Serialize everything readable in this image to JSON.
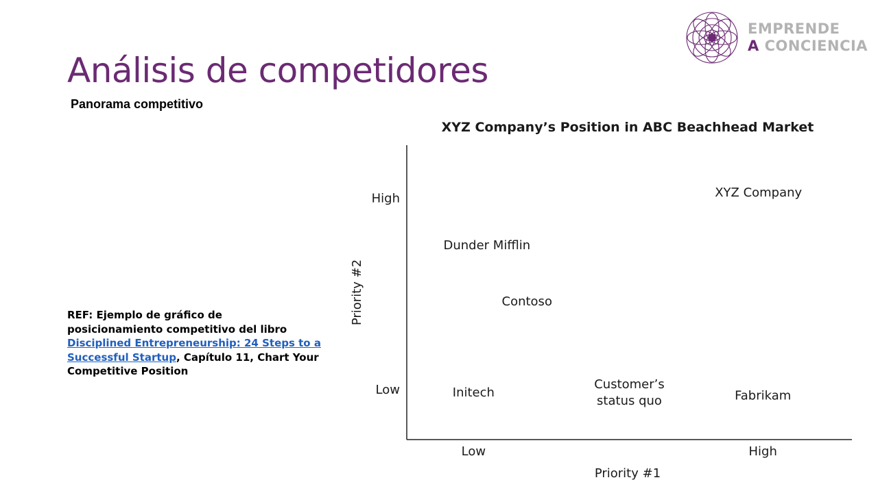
{
  "slide": {
    "title": "Análisis de competidores",
    "subtitle": "Panorama competitivo"
  },
  "logo": {
    "line1": "EMPRENDE",
    "line2_a": "A",
    "line2_b": "CONCIENCIA",
    "primary_color": "#6b2a73",
    "secondary_color": "#b3b3b3",
    "icon": "flower-mandala-icon"
  },
  "reference": {
    "prefix": "REF: Ejemplo de gráfico de posicionamiento competitivo del libro ",
    "link_text": "Disciplined Entrepreneurship: 24 Steps to a Successful Startup",
    "suffix": ", Capítulo 11, Chart Your Competitive Position"
  },
  "chart_data": {
    "type": "scatter",
    "title": "XYZ Company’s Position in ABC Beachhead Market",
    "xlabel": "Priority #1",
    "ylabel": "Priority #2",
    "xlim": [
      0,
      1
    ],
    "ylim": [
      0,
      1
    ],
    "x_ticks": [
      {
        "label": "Low",
        "value": 0.15
      },
      {
        "label": "High",
        "value": 0.8
      }
    ],
    "y_ticks": [
      {
        "label": "Low",
        "value": 0.17
      },
      {
        "label": "High",
        "value": 0.82
      }
    ],
    "points": [
      {
        "label": "XYZ Company",
        "x": 0.79,
        "y": 0.84
      },
      {
        "label": "Dunder Mifflin",
        "x": 0.18,
        "y": 0.66
      },
      {
        "label": "Contoso",
        "x": 0.27,
        "y": 0.47
      },
      {
        "label": "Initech",
        "x": 0.15,
        "y": 0.16
      },
      {
        "label": "Customer’s status quo",
        "x": 0.5,
        "y": 0.16
      },
      {
        "label": "Fabrikam",
        "x": 0.8,
        "y": 0.15
      }
    ],
    "grid": false,
    "legend": "none",
    "marker": "none"
  }
}
